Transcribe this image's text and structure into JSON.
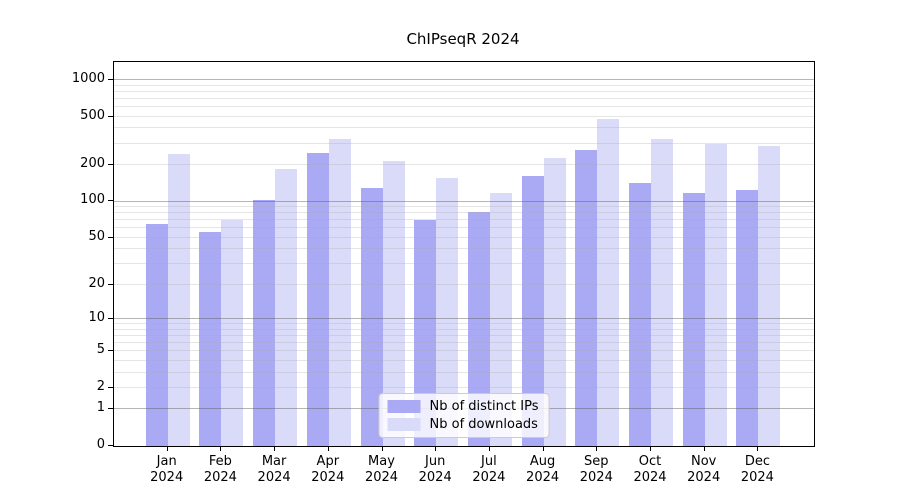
{
  "title": "ChIPseqR 2024",
  "chart_data": {
    "type": "bar",
    "title": "ChIPseqR 2024",
    "categories": [
      "Jan 2024",
      "Feb 2024",
      "Mar 2024",
      "Apr 2024",
      "May 2024",
      "Jun 2024",
      "Jul 2024",
      "Aug 2024",
      "Sep 2024",
      "Oct 2024",
      "Nov 2024",
      "Dec 2024"
    ],
    "series": [
      {
        "name": "Nb of distinct IPs",
        "color": "#a9a9f4",
        "values": [
          65,
          56,
          103,
          250,
          130,
          70,
          82,
          163,
          265,
          143,
          118,
          125
        ]
      },
      {
        "name": "Nb of downloads",
        "color": "#dadaf9",
        "values": [
          245,
          70,
          187,
          330,
          215,
          156,
          118,
          230,
          475,
          330,
          298,
          287
        ]
      }
    ],
    "xlabel": "",
    "ylabel": "",
    "yscale": "log(1+y)",
    "yticks": [
      0,
      1,
      2,
      5,
      10,
      20,
      50,
      100,
      200,
      500,
      1000
    ],
    "ylim": [
      0,
      1400
    ],
    "major_gridlines": [
      1,
      10,
      100,
      1000
    ],
    "grid": true,
    "legend_position": "bottom-center"
  },
  "colors": {
    "background": "#ffffff",
    "spine": "#000000",
    "major_grid": "rgba(90,90,90,0.45)",
    "minor_grid": "rgba(170,170,170,0.30)",
    "text": "#000000",
    "legend_border": "#cccccc",
    "legend_bg": "rgba(255,255,255,0.8)"
  }
}
